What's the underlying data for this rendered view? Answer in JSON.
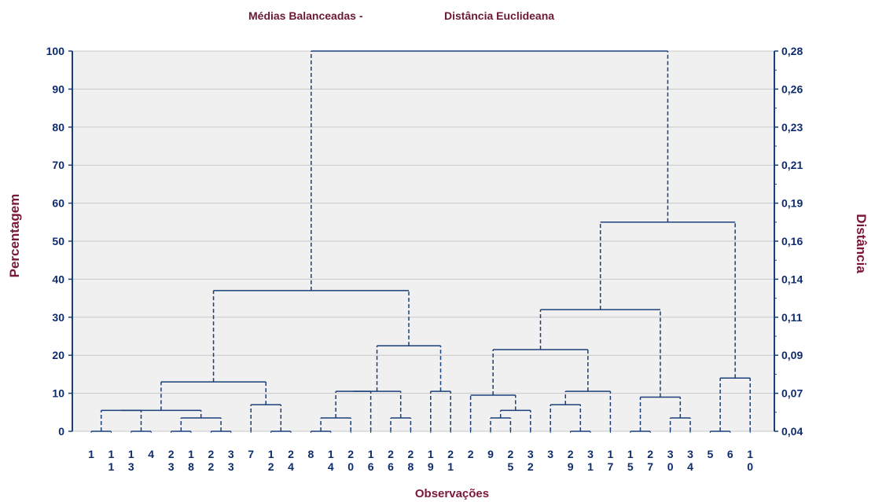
{
  "chart_data": {
    "type": "dendrogram",
    "title_left": "Médias Balanceadas -",
    "title_right": "Distância Euclideana",
    "xlabel": "Observações",
    "ylabel_left": "Percentagem",
    "ylabel_right": "Distância",
    "ylim": [
      0,
      100
    ],
    "y_ticks_left": [
      "0",
      "10",
      "20",
      "30",
      "40",
      "50",
      "60",
      "70",
      "80",
      "90",
      "100"
    ],
    "y_ticks_right": [
      "0,04",
      "0,07",
      "0,09",
      "0,11",
      "0,14",
      "0,16",
      "0,19",
      "0,21",
      "0,23",
      "0,26",
      "0,28"
    ],
    "grid": true,
    "leaf_order": [
      "1",
      "11",
      "13",
      "4",
      "23",
      "18",
      "22",
      "33",
      "7",
      "12",
      "24",
      "8",
      "14",
      "20",
      "16",
      "26",
      "28",
      "19",
      "21",
      "2",
      "9",
      "25",
      "32",
      "3",
      "29",
      "31",
      "17",
      "15",
      "27",
      "30",
      "34",
      "5",
      "6",
      "10"
    ],
    "leaf_label_lines": [
      [
        "1",
        ""
      ],
      [
        "1",
        "1"
      ],
      [
        "1",
        "3"
      ],
      [
        "4",
        ""
      ],
      [
        "2",
        "3"
      ],
      [
        "1",
        "8"
      ],
      [
        "2",
        "2"
      ],
      [
        "3",
        "3"
      ],
      [
        "7",
        ""
      ],
      [
        "1",
        "2"
      ],
      [
        "2",
        "4"
      ],
      [
        "8",
        ""
      ],
      [
        "1",
        "4"
      ],
      [
        "2",
        "0"
      ],
      [
        "1",
        "6"
      ],
      [
        "2",
        "6"
      ],
      [
        "2",
        "8"
      ],
      [
        "1",
        "9"
      ],
      [
        "2",
        "1"
      ],
      [
        "2",
        ""
      ],
      [
        "9",
        ""
      ],
      [
        "2",
        "5"
      ],
      [
        "3",
        "2"
      ],
      [
        "3",
        ""
      ],
      [
        "2",
        "9"
      ],
      [
        "3",
        "1"
      ],
      [
        "1",
        "7"
      ],
      [
        "1",
        "5"
      ],
      [
        "2",
        "7"
      ],
      [
        "3",
        "0"
      ],
      [
        "3",
        "4"
      ],
      [
        "5",
        ""
      ],
      [
        "6",
        ""
      ],
      [
        "1",
        "0"
      ]
    ],
    "merges": [
      {
        "left": "1",
        "right": "11",
        "height": 0
      },
      {
        "left": "13",
        "right": "4",
        "height": 0
      },
      {
        "left": "23",
        "right": "18",
        "height": 0
      },
      {
        "left": "22",
        "right": "33",
        "height": 0
      },
      {
        "left": "24",
        "right": "12",
        "height": 0
      },
      {
        "left": "8",
        "right": "14",
        "height": 0
      },
      {
        "left": "29",
        "right": "31",
        "height": 0
      },
      {
        "left": "15",
        "right": "27",
        "height": 0
      },
      {
        "left": "5",
        "right": "6",
        "height": 0
      },
      {
        "left": "26",
        "right": "28",
        "height": 3.5
      },
      {
        "left": "[23,18]",
        "right": "[22,33]",
        "height": 3.5
      },
      {
        "left": "[8,14]",
        "right": "20",
        "height": 3.5
      },
      {
        "left": "9",
        "right": "25",
        "height": 3.5
      },
      {
        "left": "30",
        "right": "34",
        "height": 3.5
      },
      {
        "left": "[9,25]",
        "right": "32",
        "height": 5.5
      },
      {
        "left": "[1,11]",
        "right": "[13,4]",
        "height": 5.5
      },
      {
        "left": "7",
        "right": "[12,24]",
        "height": 7
      },
      {
        "left": "3",
        "right": "[29,31]",
        "height": 7
      },
      {
        "left": "[15,27]",
        "right": "[30,34]",
        "height": 9
      },
      {
        "left": "2",
        "right": "[9,25,32]",
        "height": 9.5
      },
      {
        "left": "[8,14,20]",
        "right": "16",
        "height": 10.5
      },
      {
        "left": "19",
        "right": "21",
        "height": 10.5
      },
      {
        "left": "[3,29,31]",
        "right": "17",
        "height": 10.5
      },
      {
        "left": "[1,11,13,4,23,18,22,33]",
        "right": "[7,12,24]",
        "height": 13
      },
      {
        "left": "[5,6]",
        "right": "10",
        "height": 14
      },
      {
        "left": "[8,14,20,16]",
        "right": "[26,28]",
        "height": 10.5
      },
      {
        "left": "[8..28]",
        "right": "[19,21]",
        "height": 22.5
      },
      {
        "left": "[2,9,25,32]",
        "right": "[3,29,31,17]",
        "height": 21.5
      },
      {
        "left": "[2..17]",
        "right": "[15,27,30,34]",
        "height": 32
      },
      {
        "left": "[1..24]",
        "right": "[8..21]",
        "height": 37
      },
      {
        "left": "[2..34]",
        "right": "[5,6,10]",
        "height": 55
      },
      {
        "left": "[1..21]",
        "right": "[2..10]",
        "height": 100
      }
    ],
    "colors": {
      "line": "#1a3f7a",
      "title": "#6b1836",
      "axis_title": "#7a1838",
      "tick_text": "#0d2c6e",
      "plot_bg": "#f0f0f0",
      "grid": "#c8c8c8"
    }
  }
}
